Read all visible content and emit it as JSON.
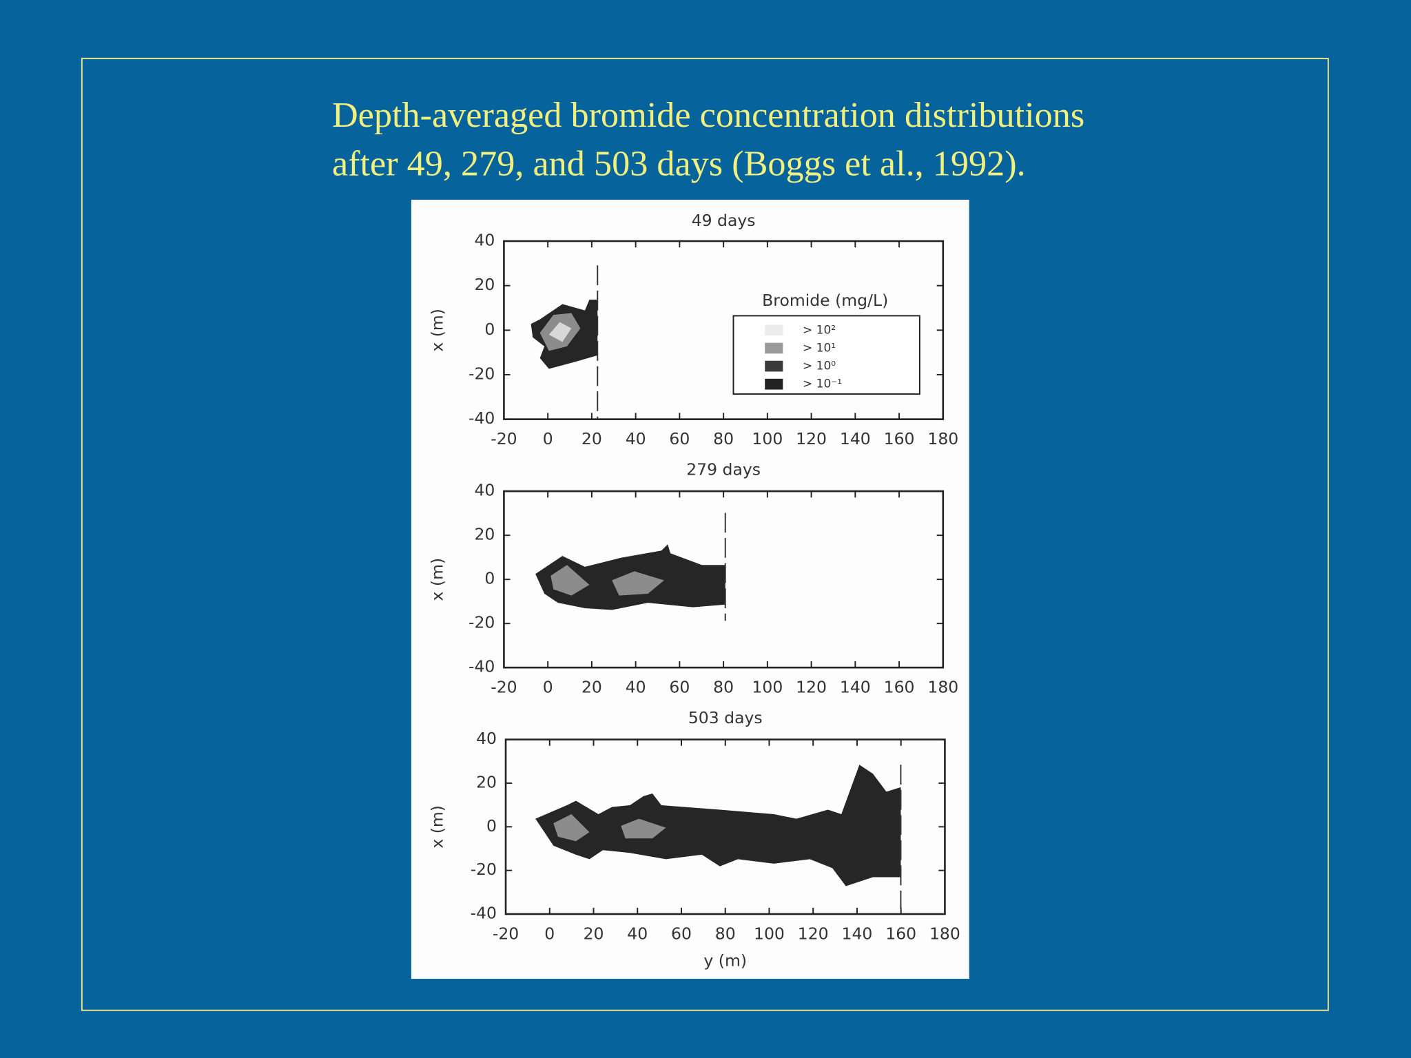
{
  "slide": {
    "title_lines": [
      "Depth-averaged bromide concentration distributions",
      "after  49, 279, and 503 days  (Boggs et al., 1992)."
    ]
  },
  "chart_data": [
    {
      "type": "contour",
      "title": "49  days",
      "y_label": "x  (m)",
      "xlim": [
        -20,
        180
      ],
      "xticks": [
        -20,
        0,
        20,
        40,
        60,
        80,
        100,
        120,
        140,
        160,
        180
      ],
      "ylim": [
        -40,
        40
      ],
      "yticks": [
        -40,
        -20,
        0,
        20,
        40
      ],
      "legend": {
        "title": "Bromide  (mg/L)",
        "entries": [
          {
            "label": "> 10²",
            "color": "#ececec"
          },
          {
            "label": "> 10¹",
            "color": "#9a9a9a"
          },
          {
            "label": "> 10⁰",
            "color": "#3a3a3a"
          },
          {
            "label": "> 10⁻¹",
            "color": "#222222"
          }
        ]
      }
    },
    {
      "type": "contour",
      "title": "279  days",
      "y_label": "x  (m)",
      "xlim": [
        -20,
        180
      ],
      "xticks": [
        -20,
        0,
        20,
        40,
        60,
        80,
        100,
        120,
        140,
        160,
        180
      ],
      "ylim": [
        -40,
        40
      ],
      "yticks": [
        -40,
        -20,
        0,
        20,
        40
      ]
    },
    {
      "type": "contour",
      "title": "503  days",
      "y_label": "x  (m)",
      "x_label": "y  (m)",
      "xlim": [
        -20,
        180
      ],
      "xticks": [
        -20,
        0,
        20,
        40,
        60,
        80,
        100,
        120,
        140,
        160,
        180
      ],
      "ylim": [
        -40,
        40
      ],
      "yticks": [
        -40,
        -20,
        0,
        20,
        40
      ]
    }
  ]
}
